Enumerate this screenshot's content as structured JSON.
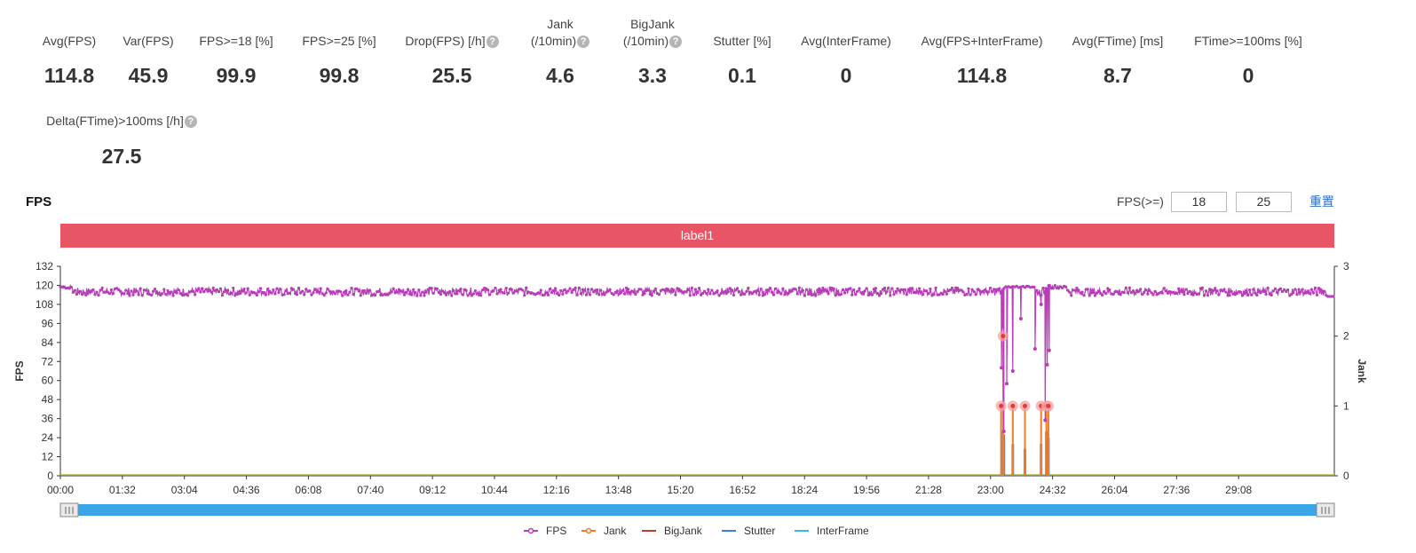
{
  "metrics": [
    {
      "label_lines": [
        "Avg(FPS)"
      ],
      "value": "114.8",
      "help": false
    },
    {
      "label_lines": [
        "Var(FPS)"
      ],
      "value": "45.9",
      "help": false
    },
    {
      "label_lines": [
        "FPS>=18 [%]"
      ],
      "value": "99.9",
      "help": false
    },
    {
      "label_lines": [
        "FPS>=25 [%]"
      ],
      "value": "99.8",
      "help": false
    },
    {
      "label_lines": [
        "Drop(FPS) [/h]"
      ],
      "value": "25.5",
      "help": true
    },
    {
      "label_lines": [
        "Jank",
        "(/10min)"
      ],
      "value": "4.6",
      "help": true
    },
    {
      "label_lines": [
        "BigJank",
        "(/10min)"
      ],
      "value": "3.3",
      "help": true
    },
    {
      "label_lines": [
        "Stutter [%]"
      ],
      "value": "0.1",
      "help": false
    },
    {
      "label_lines": [
        "Avg(InterFrame)"
      ],
      "value": "0",
      "help": false
    },
    {
      "label_lines": [
        "Avg(FPS+InterFrame)"
      ],
      "value": "114.8",
      "help": false
    },
    {
      "label_lines": [
        "Avg(FTime) [ms]"
      ],
      "value": "8.7",
      "help": false
    },
    {
      "label_lines": [
        "FTime>=100ms [%]"
      ],
      "value": "0",
      "help": false
    },
    {
      "label_lines": [
        "Delta(FTime)>100ms [/h]"
      ],
      "value": "27.5",
      "help": true
    }
  ],
  "chart_panel": {
    "title": "FPS",
    "fps_filter_label": "FPS(>=)",
    "fps_filter_values": [
      "18",
      "25"
    ],
    "reset_label": "重置",
    "band_label": "label1"
  },
  "chart_data": {
    "type": "line",
    "title": "",
    "ylabel": "FPS",
    "y2label": "Jank",
    "ylim": [
      0,
      132
    ],
    "y2lim": [
      0,
      3
    ],
    "yticks": [
      "0",
      "12",
      "24",
      "36",
      "48",
      "60",
      "72",
      "84",
      "96",
      "108",
      "120",
      "132"
    ],
    "y2ticks": [
      "0",
      "1",
      "2",
      "3"
    ],
    "xlim_minutes": [
      0,
      31.5
    ],
    "xticks": [
      "00:00",
      "01:32",
      "03:04",
      "04:36",
      "06:08",
      "07:40",
      "09:12",
      "10:44",
      "12:16",
      "13:48",
      "15:20",
      "16:52",
      "18:24",
      "19:56",
      "21:28",
      "23:00",
      "24:32",
      "26:04",
      "27:36",
      "29:08"
    ],
    "legend": [
      "FPS",
      "Jank",
      "BigJank",
      "Stutter",
      "InterFrame"
    ],
    "legend_position": "bottom",
    "colors": {
      "FPS": "#b83db8",
      "Jank": "#f07c28",
      "BigJank": "#c0392b",
      "Stutter": "#3b7dd8",
      "InterFrame": "#37b9e0",
      "band": "#e85565",
      "slider": "#3aa6e8"
    },
    "series": [
      {
        "name": "FPS",
        "axis": "left",
        "baseline": 116,
        "noise": 2.5,
        "drops": [
          {
            "t": 23.27,
            "v": 68
          },
          {
            "t": 23.3,
            "v": 94
          },
          {
            "t": 23.33,
            "v": 28
          },
          {
            "t": 23.4,
            "v": 58
          },
          {
            "t": 23.55,
            "v": 66
          },
          {
            "t": 23.75,
            "v": 99
          },
          {
            "t": 24.1,
            "v": 80
          },
          {
            "t": 24.25,
            "v": 108
          },
          {
            "t": 24.35,
            "v": 35
          },
          {
            "t": 24.4,
            "v": 70
          },
          {
            "t": 24.45,
            "v": 79
          }
        ],
        "plateau": {
          "from": 23.35,
          "to": 24.1,
          "value": 119
        }
      },
      {
        "name": "Jank",
        "axis": "right",
        "points": [
          {
            "t": 23.26,
            "v": 1
          },
          {
            "t": 23.31,
            "v": 2
          },
          {
            "t": 23.55,
            "v": 1
          },
          {
            "t": 23.85,
            "v": 1
          },
          {
            "t": 24.25,
            "v": 1
          },
          {
            "t": 24.38,
            "v": 1
          },
          {
            "t": 24.43,
            "v": 1
          }
        ]
      },
      {
        "name": "BigJank",
        "axis": "right",
        "points": []
      },
      {
        "name": "Stutter",
        "axis": "left",
        "spikes": [
          {
            "t": 23.28,
            "v": 28
          },
          {
            "t": 23.33,
            "v": 26
          },
          {
            "t": 23.55,
            "v": 20
          },
          {
            "t": 23.85,
            "v": 17
          },
          {
            "t": 24.25,
            "v": 20
          },
          {
            "t": 24.38,
            "v": 28
          },
          {
            "t": 24.43,
            "v": 24
          }
        ]
      },
      {
        "name": "InterFrame",
        "axis": "left",
        "points": []
      }
    ]
  }
}
